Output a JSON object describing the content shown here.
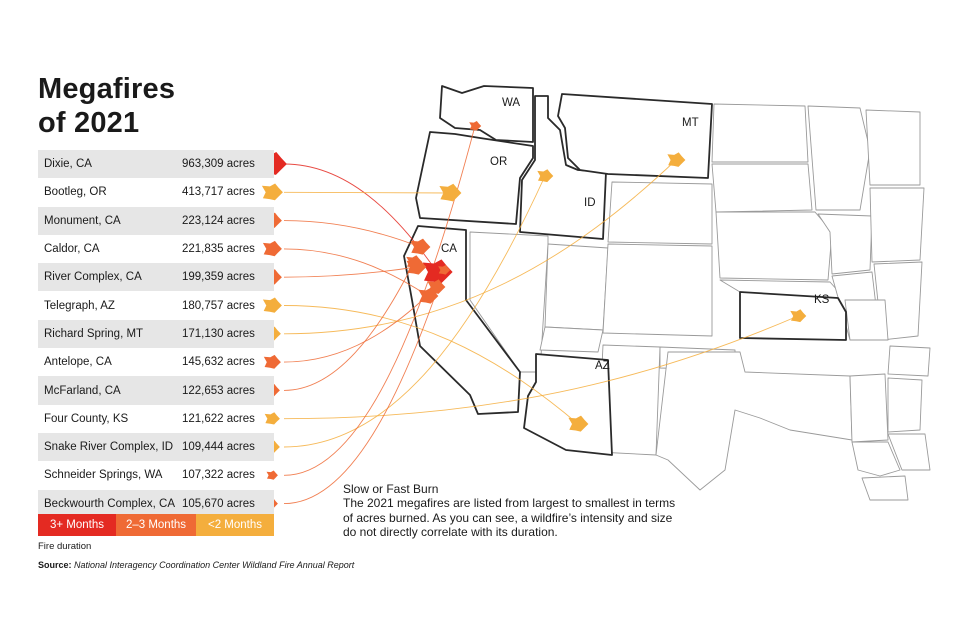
{
  "title_line1": "Megafires",
  "title_line2": "of 2021",
  "fires": [
    {
      "name": "Dixie, CA",
      "acres": "963,309 acres",
      "duration": "3+ Months",
      "color": "#e42a22"
    },
    {
      "name": "Bootleg, OR",
      "acres": "413,717 acres",
      "duration": "<2 Months",
      "color": "#f4ae3d"
    },
    {
      "name": "Monument, CA",
      "acres": "223,124 acres",
      "duration": "2–3 Months",
      "color": "#ef6a35"
    },
    {
      "name": "Caldor, CA",
      "acres": "221,835 acres",
      "duration": "2–3 Months",
      "color": "#ef6a35"
    },
    {
      "name": "River Complex, CA",
      "acres": "199,359 acres",
      "duration": "2–3 Months",
      "color": "#ef6a35"
    },
    {
      "name": "Telegraph, AZ",
      "acres": "180,757 acres",
      "duration": "<2 Months",
      "color": "#f4ae3d"
    },
    {
      "name": "Richard Spring, MT",
      "acres": "171,130 acres",
      "duration": "<2 Months",
      "color": "#f4ae3d"
    },
    {
      "name": "Antelope, CA",
      "acres": "145,632 acres",
      "duration": "2–3 Months",
      "color": "#ef6a35"
    },
    {
      "name": "McFarland, CA",
      "acres": "122,653 acres",
      "duration": "2–3 Months",
      "color": "#ef6a35"
    },
    {
      "name": "Four County, KS",
      "acres": "121,622 acres",
      "duration": "<2 Months",
      "color": "#f4ae3d"
    },
    {
      "name": "Snake River Complex, ID",
      "acres": "109,444 acres",
      "duration": "<2 Months",
      "color": "#f4ae3d"
    },
    {
      "name": "Schneider Springs, WA",
      "acres": "107,322 acres",
      "duration": "2–3 Months",
      "color": "#ef6a35"
    },
    {
      "name": "Beckwourth Complex, CA",
      "acres": "105,670 acres",
      "duration": "2–3 Months",
      "color": "#ef6a35"
    }
  ],
  "legend": [
    {
      "label": "3+ Months",
      "color": "#e42a22"
    },
    {
      "label": "2–3 Months",
      "color": "#ef6a35"
    },
    {
      "label": "<2 Months",
      "color": "#f4ae3d"
    }
  ],
  "legend_caption": "Fire duration",
  "source_label": "Source:",
  "source_text": "National Interagency Coordination Center Wildland Fire Annual Report",
  "note_heading": "Slow or Fast Burn",
  "note_body": "The 2021 megafires are listed from largest to smallest in terms of acres burned. As you can see, a wildfire’s intensity and size do not directly correlate with its duration.",
  "state_labels": {
    "wa": "WA",
    "or": "OR",
    "id": "ID",
    "mt": "MT",
    "ca": "CA",
    "az": "AZ",
    "ks": "KS"
  }
}
